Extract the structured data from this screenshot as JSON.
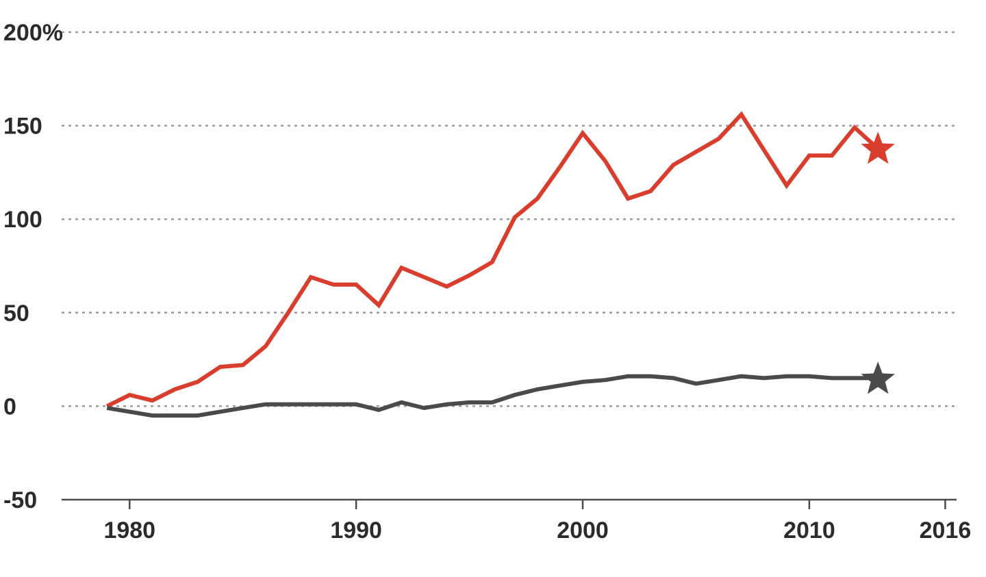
{
  "chart_data": {
    "type": "line",
    "title": "",
    "xlabel": "",
    "ylabel": "",
    "ylim": [
      -50,
      200
    ],
    "xlim": [
      1977,
      2016.5
    ],
    "grid": true,
    "y_ticks": [
      {
        "value": 200,
        "label": "200%"
      },
      {
        "value": 150,
        "label": "150"
      },
      {
        "value": 100,
        "label": "100"
      },
      {
        "value": 50,
        "label": "50"
      },
      {
        "value": 0,
        "label": "0"
      },
      {
        "value": -50,
        "label": "-50"
      }
    ],
    "x_ticks": [
      {
        "value": 1980,
        "label": "1980"
      },
      {
        "value": 1990,
        "label": "1990"
      },
      {
        "value": 2000,
        "label": "2000"
      },
      {
        "value": 2010,
        "label": "2010"
      },
      {
        "value": 2016,
        "label": "2016"
      }
    ],
    "series": [
      {
        "color": "#d93d2e",
        "end_marker": "star",
        "points": [
          [
            1979,
            0
          ],
          [
            1980,
            6
          ],
          [
            1981,
            3
          ],
          [
            1982,
            9
          ],
          [
            1983,
            13
          ],
          [
            1984,
            21
          ],
          [
            1985,
            22
          ],
          [
            1986,
            32
          ],
          [
            1987,
            50
          ],
          [
            1988,
            69
          ],
          [
            1989,
            65
          ],
          [
            1990,
            65
          ],
          [
            1991,
            54
          ],
          [
            1992,
            74
          ],
          [
            1993,
            69
          ],
          [
            1994,
            64
          ],
          [
            1995,
            70
          ],
          [
            1996,
            77
          ],
          [
            1997,
            101
          ],
          [
            1998,
            111
          ],
          [
            1999,
            128
          ],
          [
            2000,
            146
          ],
          [
            2001,
            131
          ],
          [
            2002,
            111
          ],
          [
            2003,
            115
          ],
          [
            2004,
            129
          ],
          [
            2005,
            136
          ],
          [
            2006,
            143
          ],
          [
            2007,
            156
          ],
          [
            2008,
            137
          ],
          [
            2009,
            118
          ],
          [
            2010,
            134
          ],
          [
            2011,
            134
          ],
          [
            2012,
            149
          ],
          [
            2013,
            138
          ]
        ]
      },
      {
        "color": "#4a4a48",
        "end_marker": "star",
        "points": [
          [
            1979,
            -1
          ],
          [
            1980,
            -3
          ],
          [
            1981,
            -5
          ],
          [
            1982,
            -5
          ],
          [
            1983,
            -5
          ],
          [
            1984,
            -3
          ],
          [
            1985,
            -1
          ],
          [
            1986,
            1
          ],
          [
            1987,
            1
          ],
          [
            1988,
            1
          ],
          [
            1989,
            1
          ],
          [
            1990,
            1
          ],
          [
            1991,
            -2
          ],
          [
            1992,
            2
          ],
          [
            1993,
            -1
          ],
          [
            1994,
            1
          ],
          [
            1995,
            2
          ],
          [
            1996,
            2
          ],
          [
            1997,
            6
          ],
          [
            1998,
            9
          ],
          [
            1999,
            11
          ],
          [
            2000,
            13
          ],
          [
            2001,
            14
          ],
          [
            2002,
            16
          ],
          [
            2003,
            16
          ],
          [
            2004,
            15
          ],
          [
            2005,
            12
          ],
          [
            2006,
            14
          ],
          [
            2007,
            16
          ],
          [
            2008,
            15
          ],
          [
            2009,
            16
          ],
          [
            2010,
            16
          ],
          [
            2011,
            15
          ],
          [
            2012,
            15
          ],
          [
            2013,
            15
          ]
        ]
      }
    ]
  }
}
